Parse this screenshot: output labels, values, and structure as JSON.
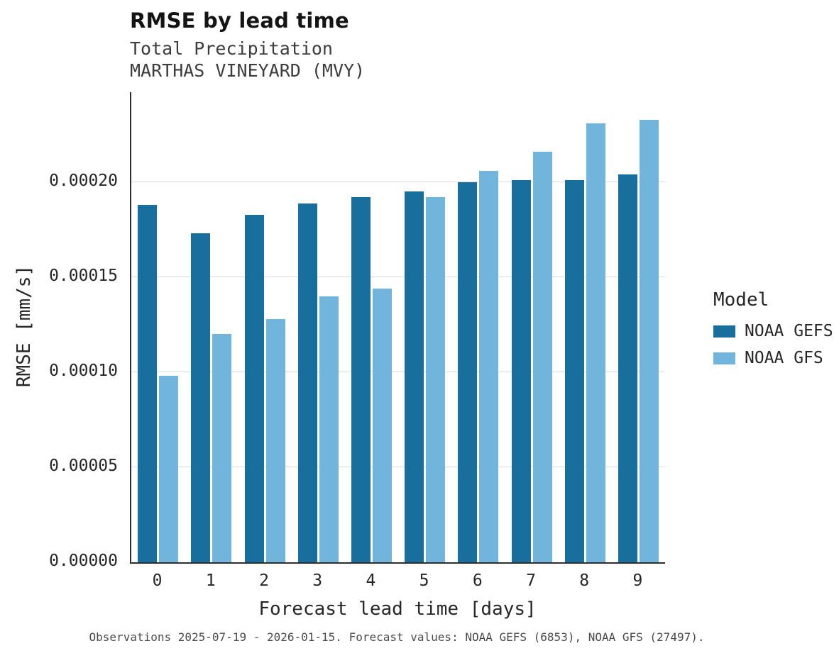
{
  "header": {
    "title": "RMSE by lead time",
    "subtitle1": "Total Precipitation",
    "subtitle2": "MARTHAS VINEYARD (MVY)"
  },
  "legend": {
    "title": "Model",
    "entries": [
      {
        "label": "NOAA GEFS",
        "color": "#186f9d"
      },
      {
        "label": "NOAA GFS",
        "color": "#72b5dc"
      }
    ]
  },
  "caption": "Observations 2025-07-19 - 2026-01-15. Forecast values: NOAA GEFS (6853), NOAA GFS (27497).",
  "colors": {
    "gefs": "#186f9d",
    "gfs": "#72b5dc",
    "gridline": "#d9d9d9",
    "axis": "#2e2e2e"
  },
  "chart_data": {
    "type": "bar",
    "title": "RMSE by lead time",
    "subtitle": "Total Precipitation — MARTHAS VINEYARD (MVY)",
    "xlabel": "Forecast lead time [days]",
    "ylabel": "RMSE [mm/s]",
    "categories": [
      "0",
      "1",
      "2",
      "3",
      "4",
      "5",
      "6",
      "7",
      "8",
      "9"
    ],
    "series": [
      {
        "name": "NOAA GEFS",
        "color": "#186f9d",
        "values": [
          0.000188,
          0.000173,
          0.000183,
          0.000189,
          0.000192,
          0.000195,
          0.0002,
          0.000201,
          0.000201,
          0.000204
        ]
      },
      {
        "name": "NOAA GFS",
        "color": "#72b5dc",
        "values": [
          9.8e-05,
          0.00012,
          0.000128,
          0.00014,
          0.000144,
          0.000192,
          0.000206,
          0.000216,
          0.000231,
          0.000233
        ]
      }
    ],
    "ylim": [
      0,
      0.0002474
    ],
    "yticks": [
      0,
      5e-05,
      0.0001,
      0.00015,
      0.0002
    ],
    "ytick_labels": [
      "0.00000",
      "0.00005",
      "0.00010",
      "0.00015",
      "0.00020"
    ],
    "grid": "horizontal",
    "legend_position": "right"
  }
}
